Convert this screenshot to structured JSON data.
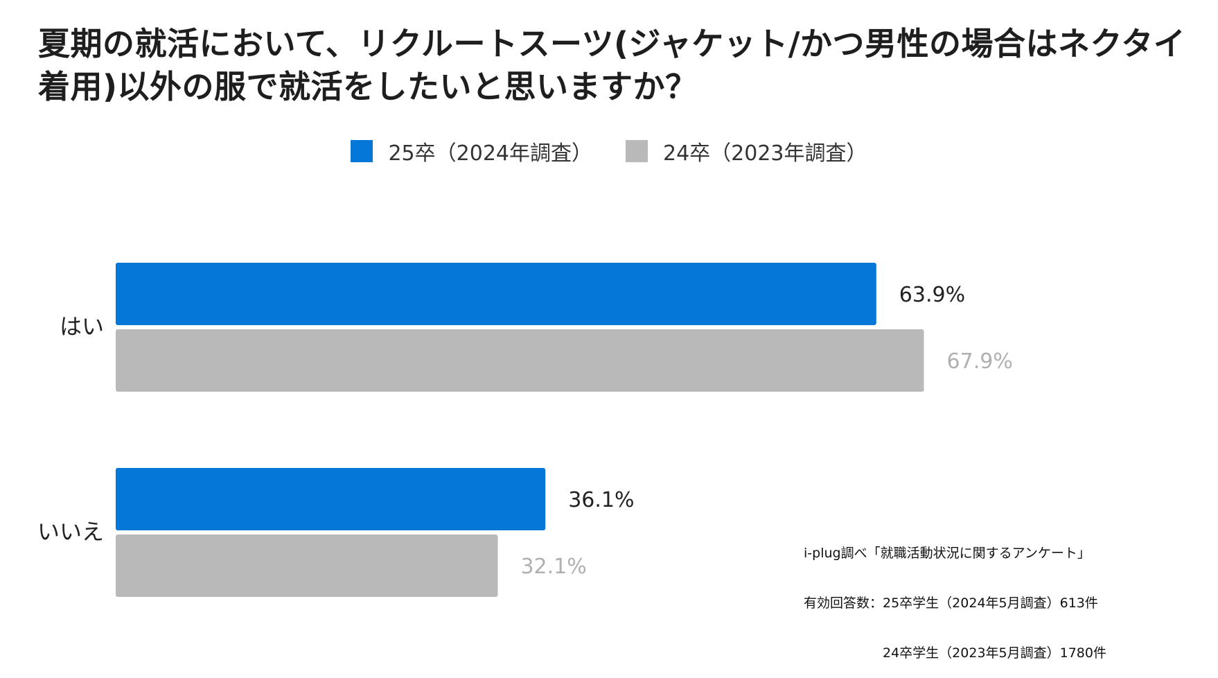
{
  "chart_data": {
    "type": "bar",
    "orientation": "horizontal",
    "title": "夏期の就活において、リクルートスーツ(ジャケット/かつ男性の場合はネクタイ着用)以外の服で就活をしたいと思いますか？",
    "categories": [
      "はい",
      "いいえ"
    ],
    "series": [
      {
        "name": "25卒（2024年調査）",
        "values": [
          63.9,
          36.1
        ],
        "color": "#0477d9",
        "label_color": "#222222"
      },
      {
        "name": "24卒（2023年調査）",
        "values": [
          67.9,
          32.1
        ],
        "color": "#b9b9b9",
        "label_color": "#b0b0b0"
      }
    ],
    "value_labels": [
      [
        "63.9%",
        "36.1%"
      ],
      [
        "67.9%",
        "32.1%"
      ]
    ],
    "xlim": [
      0,
      100
    ],
    "xlabel": "",
    "ylabel": "",
    "grid": false,
    "legend_position": "top-center"
  },
  "source_note": {
    "line1": "i-plug調べ「就職活動状況に関するアンケート」",
    "line2": "有効回答数：25卒学生（2024年5月調査）613件",
    "line3": "　　　　　　24卒学生（2023年5月調査）1780件"
  }
}
